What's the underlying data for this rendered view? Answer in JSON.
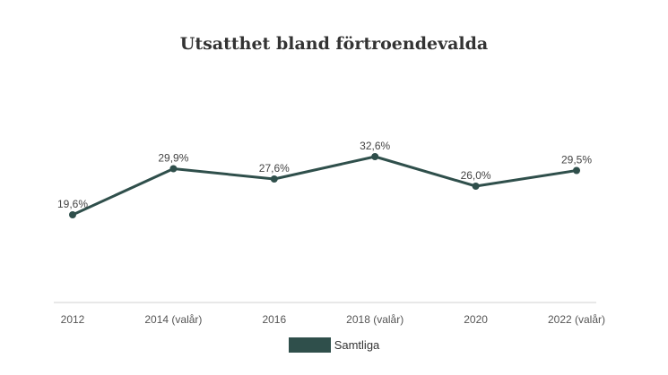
{
  "chart_data": {
    "type": "line",
    "title": "Utsatthet bland förtroendevalda",
    "categories": [
      "2012",
      "2014 (valår)",
      "2016",
      "2018 (valår)",
      "2020",
      "2022 (valår)"
    ],
    "series": [
      {
        "name": "Samtliga",
        "values": [
          19.6,
          29.9,
          27.6,
          32.6,
          26.0,
          29.5
        ],
        "labels": [
          "19,6%",
          "29,9%",
          "27,6%",
          "32,6%",
          "26,0%",
          "29,5%"
        ],
        "color": "#2f4f4b"
      }
    ],
    "ylim": [
      0,
      50
    ],
    "grid": false,
    "legend_position": "bottom-center"
  }
}
